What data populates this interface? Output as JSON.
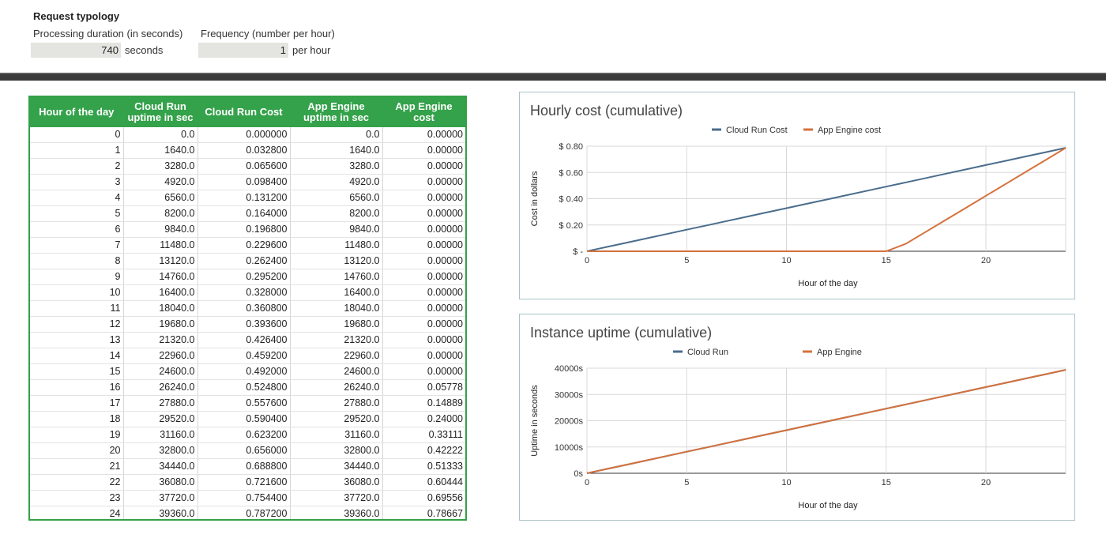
{
  "typology": {
    "title": "Request typology",
    "duration_label": "Processing duration (in seconds)",
    "duration_value": "740",
    "duration_unit": "seconds",
    "frequency_label": "Frequency (number per hour)",
    "frequency_value": "1",
    "frequency_unit": "per hour"
  },
  "table": {
    "headers": [
      "Hour of the day",
      "Cloud Run uptime in sec",
      "Cloud Run Cost",
      "App Engine uptime in sec",
      "App Engine cost"
    ],
    "rows": [
      [
        "0",
        "0.0",
        "0.000000",
        "0.0",
        "0.00000"
      ],
      [
        "1",
        "1640.0",
        "0.032800",
        "1640.0",
        "0.00000"
      ],
      [
        "2",
        "3280.0",
        "0.065600",
        "3280.0",
        "0.00000"
      ],
      [
        "3",
        "4920.0",
        "0.098400",
        "4920.0",
        "0.00000"
      ],
      [
        "4",
        "6560.0",
        "0.131200",
        "6560.0",
        "0.00000"
      ],
      [
        "5",
        "8200.0",
        "0.164000",
        "8200.0",
        "0.00000"
      ],
      [
        "6",
        "9840.0",
        "0.196800",
        "9840.0",
        "0.00000"
      ],
      [
        "7",
        "11480.0",
        "0.229600",
        "11480.0",
        "0.00000"
      ],
      [
        "8",
        "13120.0",
        "0.262400",
        "13120.0",
        "0.00000"
      ],
      [
        "9",
        "14760.0",
        "0.295200",
        "14760.0",
        "0.00000"
      ],
      [
        "10",
        "16400.0",
        "0.328000",
        "16400.0",
        "0.00000"
      ],
      [
        "11",
        "18040.0",
        "0.360800",
        "18040.0",
        "0.00000"
      ],
      [
        "12",
        "19680.0",
        "0.393600",
        "19680.0",
        "0.00000"
      ],
      [
        "13",
        "21320.0",
        "0.426400",
        "21320.0",
        "0.00000"
      ],
      [
        "14",
        "22960.0",
        "0.459200",
        "22960.0",
        "0.00000"
      ],
      [
        "15",
        "24600.0",
        "0.492000",
        "24600.0",
        "0.00000"
      ],
      [
        "16",
        "26240.0",
        "0.524800",
        "26240.0",
        "0.05778"
      ],
      [
        "17",
        "27880.0",
        "0.557600",
        "27880.0",
        "0.14889"
      ],
      [
        "18",
        "29520.0",
        "0.590400",
        "29520.0",
        "0.24000"
      ],
      [
        "19",
        "31160.0",
        "0.623200",
        "31160.0",
        "0.33111"
      ],
      [
        "20",
        "32800.0",
        "0.656000",
        "32800.0",
        "0.42222"
      ],
      [
        "21",
        "34440.0",
        "0.688800",
        "34440.0",
        "0.51333"
      ],
      [
        "22",
        "36080.0",
        "0.721600",
        "36080.0",
        "0.60444"
      ],
      [
        "23",
        "37720.0",
        "0.754400",
        "37720.0",
        "0.69556"
      ],
      [
        "24",
        "39360.0",
        "0.787200",
        "39360.0",
        "0.78667"
      ]
    ]
  },
  "chart_data": [
    {
      "type": "line",
      "title": "Hourly cost (cumulative)",
      "xlabel": "Hour of the day",
      "ylabel": "Cost in dollars",
      "x": [
        0,
        1,
        2,
        3,
        4,
        5,
        6,
        7,
        8,
        9,
        10,
        11,
        12,
        13,
        14,
        15,
        16,
        17,
        18,
        19,
        20,
        21,
        22,
        23,
        24
      ],
      "xticks": [
        0,
        5,
        10,
        15,
        20
      ],
      "yticks": [
        0,
        0.2,
        0.4,
        0.6,
        0.8
      ],
      "ytick_labels": [
        "$ -",
        "$ 0.20",
        "$ 0.40",
        "$ 0.60",
        "$ 0.80"
      ],
      "xlim": [
        0,
        24
      ],
      "ylim": [
        0,
        0.8
      ],
      "legend_position": "top",
      "grid": true,
      "series": [
        {
          "name": "Cloud Run Cost",
          "color": "#4a6d8c",
          "values": [
            0.0,
            0.0328,
            0.0656,
            0.0984,
            0.1312,
            0.164,
            0.1968,
            0.2296,
            0.2624,
            0.2952,
            0.328,
            0.3608,
            0.3936,
            0.4264,
            0.4592,
            0.492,
            0.5248,
            0.5576,
            0.5904,
            0.6232,
            0.656,
            0.6888,
            0.7216,
            0.7544,
            0.7872
          ]
        },
        {
          "name": "App Engine cost",
          "color": "#d4713d",
          "values": [
            0,
            0,
            0,
            0,
            0,
            0,
            0,
            0,
            0,
            0,
            0,
            0,
            0,
            0,
            0,
            0,
            0.05778,
            0.14889,
            0.24,
            0.33111,
            0.42222,
            0.51333,
            0.60444,
            0.69556,
            0.78667
          ]
        }
      ]
    },
    {
      "type": "line",
      "title": "Instance uptime (cumulative)",
      "xlabel": "Hour of the day",
      "ylabel": "Uptime in seconds",
      "x": [
        0,
        1,
        2,
        3,
        4,
        5,
        6,
        7,
        8,
        9,
        10,
        11,
        12,
        13,
        14,
        15,
        16,
        17,
        18,
        19,
        20,
        21,
        22,
        23,
        24
      ],
      "xticks": [
        0,
        5,
        10,
        15,
        20
      ],
      "yticks": [
        0,
        10000,
        20000,
        30000,
        40000
      ],
      "ytick_labels": [
        "0s",
        "10000s",
        "20000s",
        "30000s",
        "40000s"
      ],
      "xlim": [
        0,
        24
      ],
      "ylim": [
        0,
        40000
      ],
      "legend_position": "top",
      "grid": true,
      "series": [
        {
          "name": "Cloud Run",
          "color": "#4a6d8c",
          "values": [
            0,
            1640,
            3280,
            4920,
            6560,
            8200,
            9840,
            11480,
            13120,
            14760,
            16400,
            18040,
            19680,
            21320,
            22960,
            24600,
            26240,
            27880,
            29520,
            31160,
            32800,
            34440,
            36080,
            37720,
            39360
          ]
        },
        {
          "name": "App Engine",
          "color": "#d4713d",
          "values": [
            0,
            1640,
            3280,
            4920,
            6560,
            8200,
            9840,
            11480,
            13120,
            14760,
            16400,
            18040,
            19680,
            21320,
            22960,
            24600,
            26240,
            27880,
            29520,
            31160,
            32800,
            34440,
            36080,
            37720,
            39360
          ]
        }
      ]
    }
  ]
}
